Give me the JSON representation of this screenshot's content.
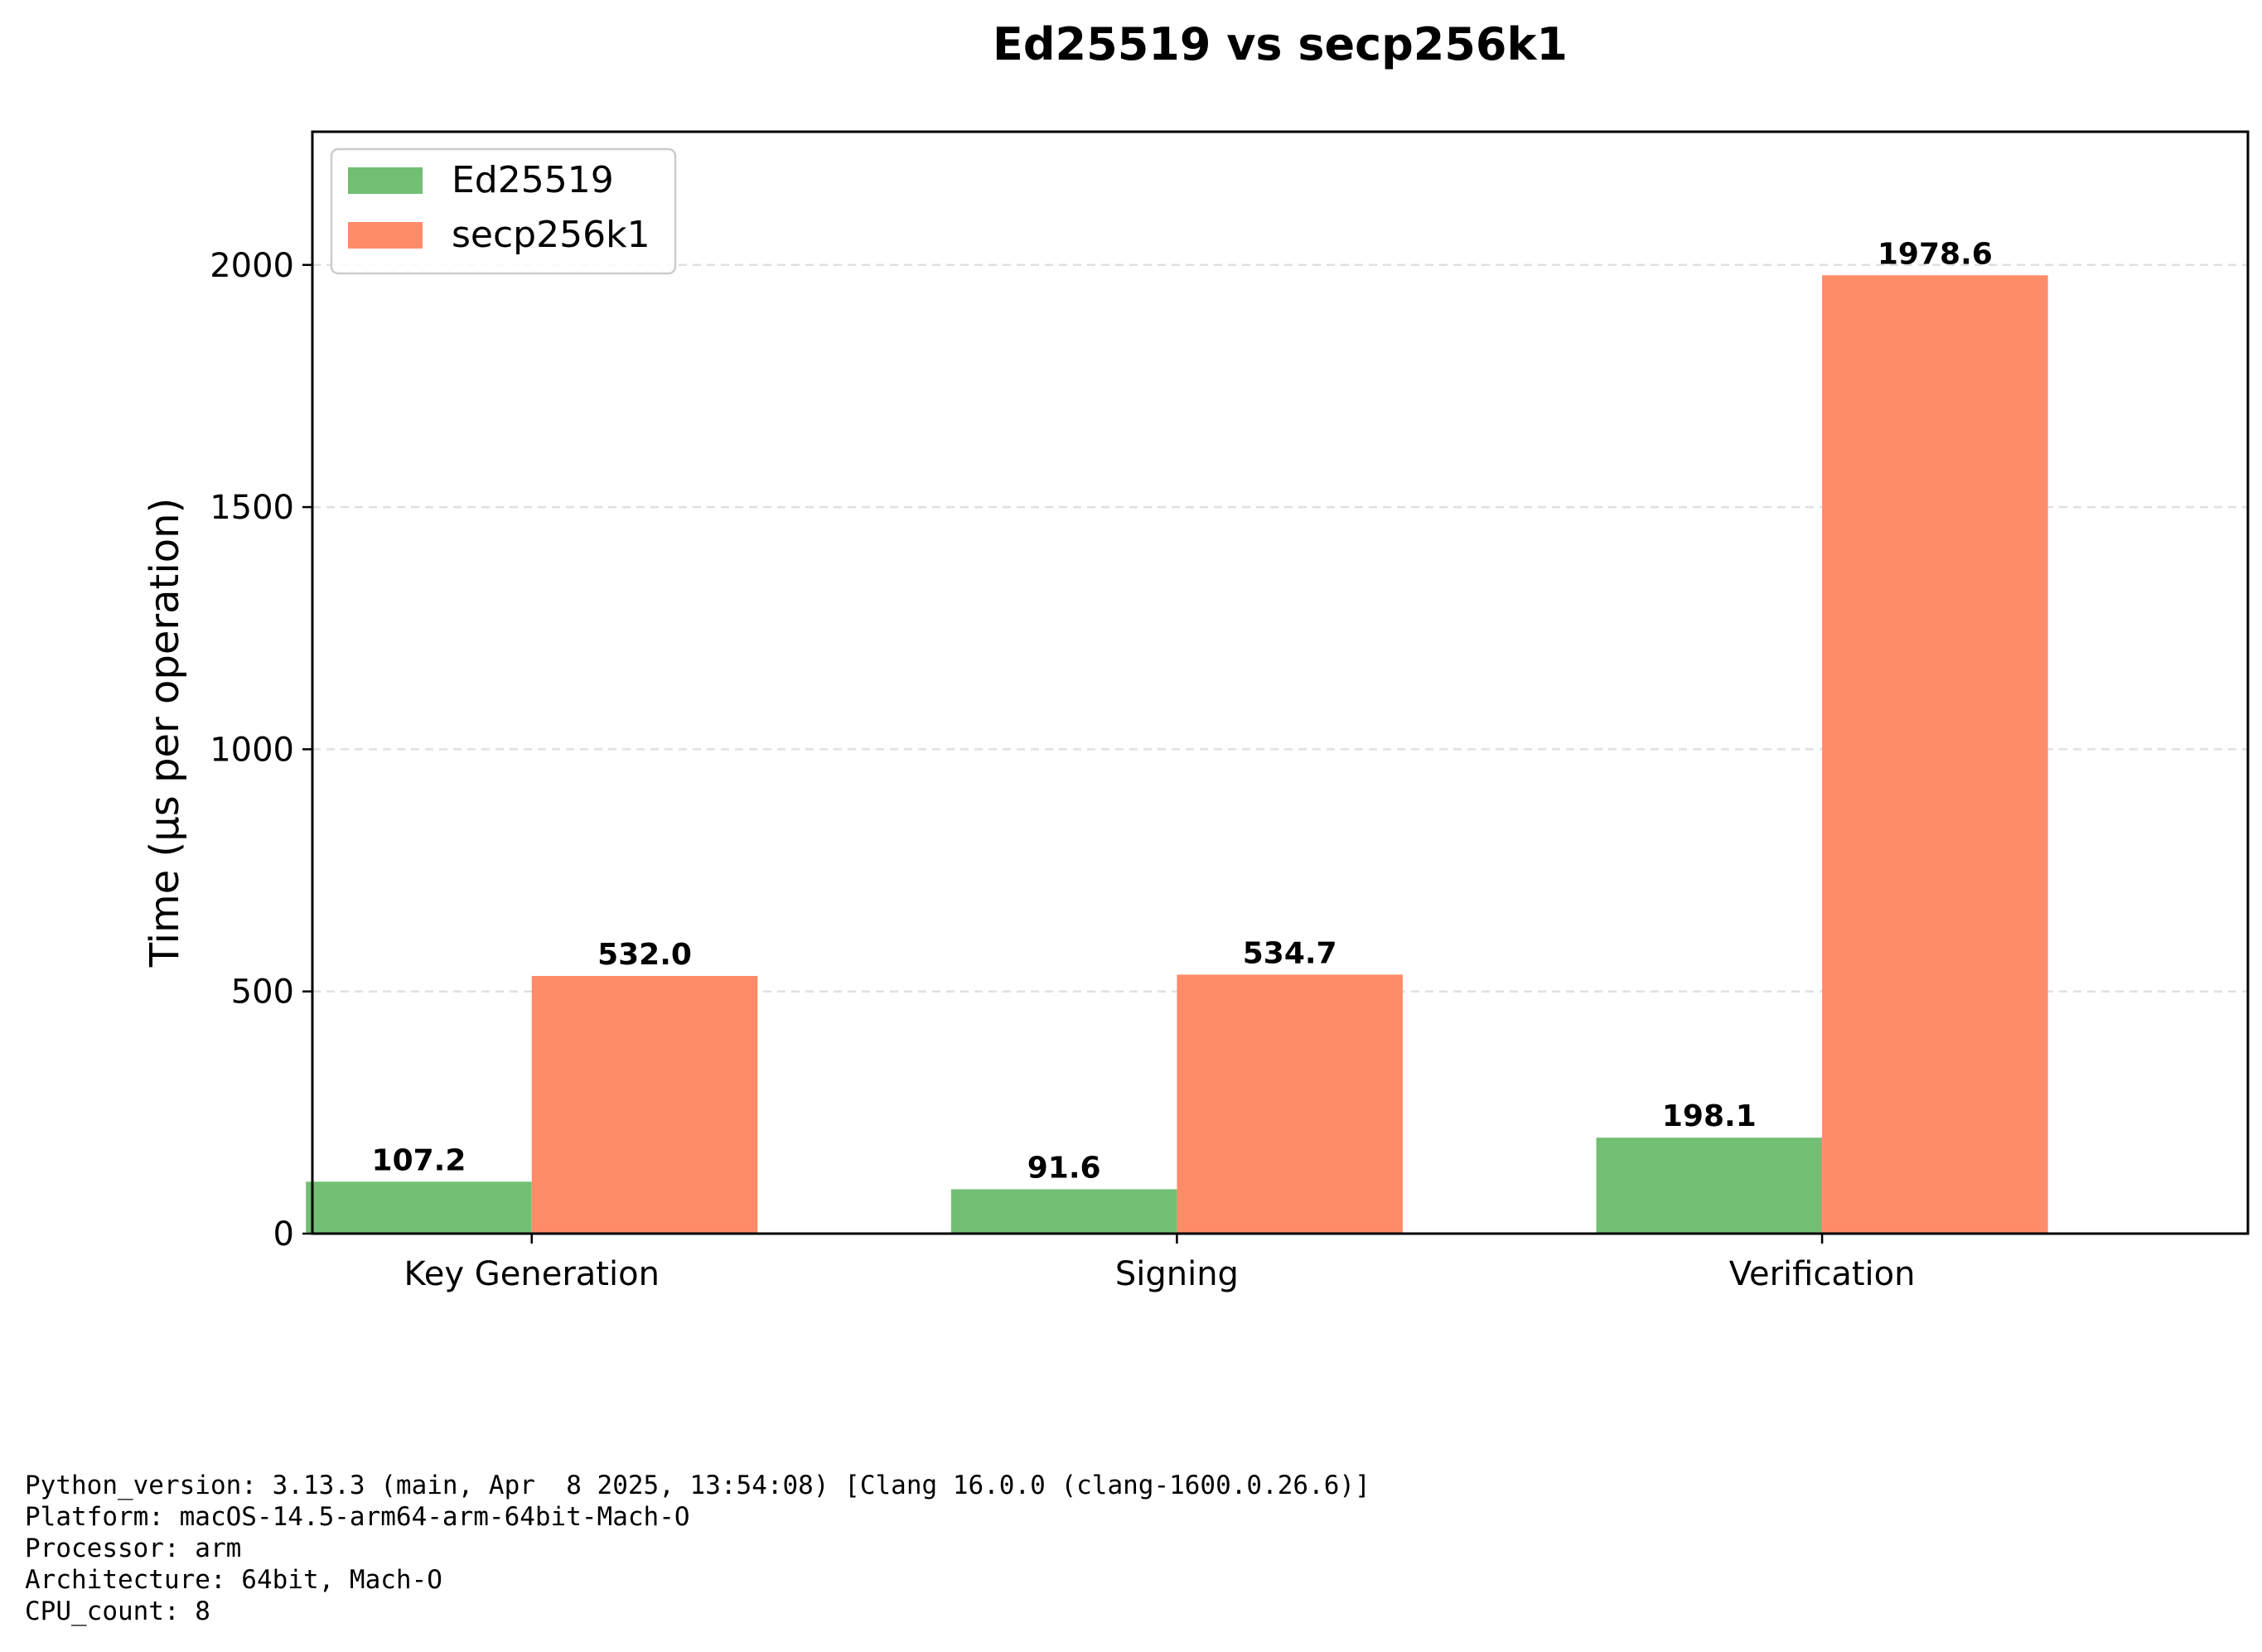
{
  "chart_data": {
    "type": "bar",
    "title": "Ed25519 vs secp256k1",
    "xlabel": "",
    "ylabel": "Time (µs per operation)",
    "categories": [
      "Key Generation",
      "Signing",
      "Verification"
    ],
    "series": [
      {
        "name": "Ed25519",
        "values": [
          107.2,
          91.6,
          198.1
        ],
        "color": "#72bf74"
      },
      {
        "name": "secp256k1",
        "values": [
          532.0,
          534.7,
          1978.6
        ],
        "color": "#ff8c69"
      }
    ],
    "value_labels": [
      [
        "107.2",
        "91.6",
        "198.1"
      ],
      [
        "532.0",
        "534.7",
        "1978.6"
      ]
    ],
    "ylim": [
      0,
      2275
    ],
    "yticks": [
      0,
      500,
      1000,
      1500,
      2000
    ],
    "grid": "horizontal dashed",
    "legend": "top-left"
  },
  "system_info": {
    "lines": [
      "Python_version: 3.13.3 (main, Apr  8 2025, 13:54:08) [Clang 16.0.0 (clang-1600.0.26.6)]",
      "Platform: macOS-14.5-arm64-arm-64bit-Mach-O",
      "Processor: arm",
      "Architecture: 64bit, Mach-O",
      "CPU_count: 8"
    ]
  }
}
